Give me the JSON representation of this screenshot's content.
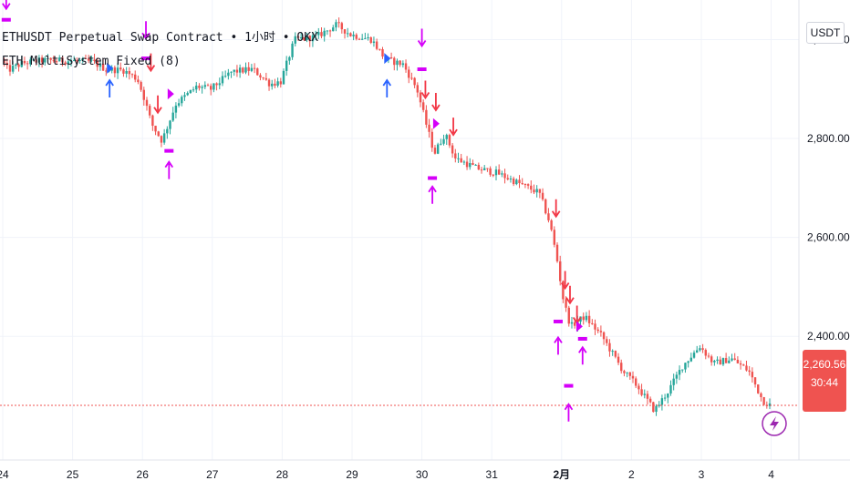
{
  "legend": {
    "symbol_line": "ETHUSDT Perpetual Swap Contract • 1小时 • OKX",
    "indicator_line": "ETH MultiSystem Fixed (8)"
  },
  "price_axis": {
    "unit_button": "USDT",
    "labels": [
      {
        "value": 3000,
        "text": "3,000.00"
      },
      {
        "value": 2800,
        "text": "2,800.00"
      },
      {
        "value": 2600,
        "text": "2,600.00"
      },
      {
        "value": 2400,
        "text": "2,400.00"
      }
    ],
    "last_price": "2,260.56",
    "countdown": "30:44"
  },
  "time_axis": {
    "labels": [
      {
        "t": 0,
        "text": "24"
      },
      {
        "t": 1,
        "text": "25"
      },
      {
        "t": 2,
        "text": "26"
      },
      {
        "t": 3,
        "text": "27"
      },
      {
        "t": 4,
        "text": "28"
      },
      {
        "t": 5,
        "text": "29"
      },
      {
        "t": 6,
        "text": "30"
      },
      {
        "t": 7,
        "text": "31"
      },
      {
        "t": 8,
        "text": "2月"
      },
      {
        "t": 9,
        "text": "2"
      },
      {
        "t": 10,
        "text": "3"
      },
      {
        "t": 11,
        "text": "4"
      }
    ]
  },
  "colors": {
    "up": "#26a69a",
    "down": "#ef5350",
    "grid": "#f0f3fa",
    "axis_text": "#131722",
    "last_price_line": "#ef5350",
    "signal_magenta": "#d500f9",
    "signal_blue": "#2962ff",
    "signal_red": "#f23645"
  },
  "chart_data": {
    "type": "candlestick",
    "symbol": "ETHUSDT",
    "interval": "1小时",
    "exchange": "OKX",
    "ylim": [
      2150,
      3080
    ],
    "grid": true,
    "last_price": 2260.56,
    "close_path": [
      {
        "t": 0.0,
        "p": 2960
      },
      {
        "t": 0.1,
        "p": 2938
      },
      {
        "t": 0.3,
        "p": 2952
      },
      {
        "t": 0.6,
        "p": 2958
      },
      {
        "t": 1.0,
        "p": 2957
      },
      {
        "t": 1.3,
        "p": 2955
      },
      {
        "t": 1.5,
        "p": 2940
      },
      {
        "t": 1.75,
        "p": 2938
      },
      {
        "t": 1.95,
        "p": 2920
      },
      {
        "t": 2.05,
        "p": 2880
      },
      {
        "t": 2.15,
        "p": 2830
      },
      {
        "t": 2.3,
        "p": 2795
      },
      {
        "t": 2.5,
        "p": 2870
      },
      {
        "t": 2.8,
        "p": 2905
      },
      {
        "t": 3.0,
        "p": 2900
      },
      {
        "t": 3.3,
        "p": 2935
      },
      {
        "t": 3.6,
        "p": 2940
      },
      {
        "t": 3.85,
        "p": 2910
      },
      {
        "t": 4.0,
        "p": 2915
      },
      {
        "t": 4.2,
        "p": 3000
      },
      {
        "t": 4.5,
        "p": 3005
      },
      {
        "t": 4.8,
        "p": 3030
      },
      {
        "t": 5.0,
        "p": 3010
      },
      {
        "t": 5.3,
        "p": 3000
      },
      {
        "t": 5.5,
        "p": 2960
      },
      {
        "t": 5.75,
        "p": 2950
      },
      {
        "t": 5.95,
        "p": 2900
      },
      {
        "t": 6.1,
        "p": 2820
      },
      {
        "t": 6.2,
        "p": 2770
      },
      {
        "t": 6.35,
        "p": 2810
      },
      {
        "t": 6.5,
        "p": 2760
      },
      {
        "t": 6.8,
        "p": 2740
      },
      {
        "t": 7.1,
        "p": 2730
      },
      {
        "t": 7.4,
        "p": 2710
      },
      {
        "t": 7.7,
        "p": 2690
      },
      {
        "t": 7.85,
        "p": 2630
      },
      {
        "t": 7.95,
        "p": 2560
      },
      {
        "t": 8.05,
        "p": 2470
      },
      {
        "t": 8.15,
        "p": 2420
      },
      {
        "t": 8.35,
        "p": 2440
      },
      {
        "t": 8.6,
        "p": 2400
      },
      {
        "t": 8.9,
        "p": 2330
      },
      {
        "t": 9.1,
        "p": 2300
      },
      {
        "t": 9.35,
        "p": 2250
      },
      {
        "t": 9.55,
        "p": 2290
      },
      {
        "t": 9.75,
        "p": 2340
      },
      {
        "t": 10.0,
        "p": 2380
      },
      {
        "t": 10.2,
        "p": 2345
      },
      {
        "t": 10.45,
        "p": 2355
      },
      {
        "t": 10.7,
        "p": 2330
      },
      {
        "t": 10.9,
        "p": 2270
      },
      {
        "t": 11.0,
        "p": 2261
      }
    ],
    "signals": [
      {
        "t": 0.05,
        "p": 3075,
        "kind": "arrow-down",
        "color": "magenta"
      },
      {
        "t": 0.05,
        "p": 3040,
        "kind": "bar",
        "color": "magenta"
      },
      {
        "t": 1.53,
        "p": 2905,
        "kind": "arrow-up",
        "color": "blue"
      },
      {
        "t": 1.53,
        "p": 2942,
        "kind": "triangle-right",
        "color": "blue"
      },
      {
        "t": 2.05,
        "p": 3015,
        "kind": "arrow-down",
        "color": "magenta"
      },
      {
        "t": 2.05,
        "p": 2962,
        "kind": "bar",
        "color": "magenta"
      },
      {
        "t": 2.12,
        "p": 2950,
        "kind": "arrow-down",
        "color": "red"
      },
      {
        "t": 2.22,
        "p": 2865,
        "kind": "arrow-down",
        "color": "red"
      },
      {
        "t": 2.38,
        "p": 2775,
        "kind": "bar",
        "color": "magenta"
      },
      {
        "t": 2.38,
        "p": 2740,
        "kind": "arrow-up",
        "color": "magenta"
      },
      {
        "t": 2.4,
        "p": 2890,
        "kind": "triangle-right",
        "color": "magenta"
      },
      {
        "t": 5.5,
        "p": 2905,
        "kind": "arrow-up",
        "color": "blue"
      },
      {
        "t": 5.5,
        "p": 2962,
        "kind": "triangle-right",
        "color": "blue"
      },
      {
        "t": 6.0,
        "p": 3000,
        "kind": "arrow-down",
        "color": "magenta"
      },
      {
        "t": 6.0,
        "p": 2940,
        "kind": "bar",
        "color": "magenta"
      },
      {
        "t": 6.05,
        "p": 2895,
        "kind": "arrow-down",
        "color": "red"
      },
      {
        "t": 6.2,
        "p": 2870,
        "kind": "arrow-down",
        "color": "red"
      },
      {
        "t": 6.2,
        "p": 2830,
        "kind": "triangle-right",
        "color": "magenta"
      },
      {
        "t": 6.45,
        "p": 2820,
        "kind": "arrow-down",
        "color": "red"
      },
      {
        "t": 6.15,
        "p": 2720,
        "kind": "bar",
        "color": "magenta"
      },
      {
        "t": 6.15,
        "p": 2690,
        "kind": "arrow-up",
        "color": "magenta"
      },
      {
        "t": 7.92,
        "p": 2655,
        "kind": "arrow-down",
        "color": "red"
      },
      {
        "t": 8.05,
        "p": 2510,
        "kind": "arrow-down",
        "color": "red"
      },
      {
        "t": 8.12,
        "p": 2480,
        "kind": "arrow-down",
        "color": "red"
      },
      {
        "t": 8.22,
        "p": 2440,
        "kind": "arrow-down",
        "color": "red"
      },
      {
        "t": 7.95,
        "p": 2430,
        "kind": "bar",
        "color": "magenta"
      },
      {
        "t": 7.95,
        "p": 2385,
        "kind": "arrow-up",
        "color": "magenta"
      },
      {
        "t": 8.1,
        "p": 2300,
        "kind": "bar",
        "color": "magenta"
      },
      {
        "t": 8.1,
        "p": 2250,
        "kind": "arrow-up",
        "color": "magenta"
      },
      {
        "t": 8.3,
        "p": 2395,
        "kind": "bar",
        "color": "magenta"
      },
      {
        "t": 8.3,
        "p": 2365,
        "kind": "arrow-up",
        "color": "magenta"
      },
      {
        "t": 8.25,
        "p": 2420,
        "kind": "triangle-right",
        "color": "magenta"
      }
    ]
  }
}
